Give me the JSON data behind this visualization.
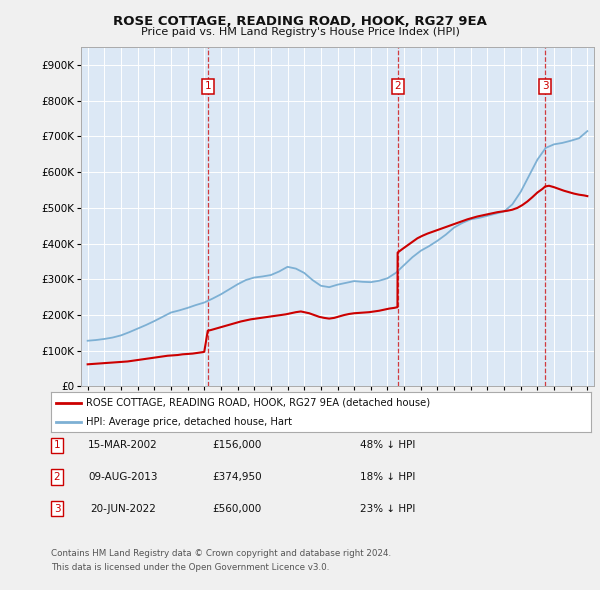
{
  "title": "ROSE COTTAGE, READING ROAD, HOOK, RG27 9EA",
  "subtitle": "Price paid vs. HM Land Registry's House Price Index (HPI)",
  "ylim": [
    0,
    950000
  ],
  "yticks": [
    0,
    100000,
    200000,
    300000,
    400000,
    500000,
    600000,
    700000,
    800000,
    900000
  ],
  "ytick_labels": [
    "£0",
    "£100K",
    "£200K",
    "£300K",
    "£400K",
    "£500K",
    "£600K",
    "£700K",
    "£800K",
    "£900K"
  ],
  "fig_bg": "#f0f0f0",
  "plot_bg": "#dce8f5",
  "red_color": "#cc0000",
  "blue_color": "#7db0d4",
  "grid_color": "#ffffff",
  "sale_year_floats": [
    2002.21,
    2013.61,
    2022.47
  ],
  "sale_labels": [
    "1",
    "2",
    "3"
  ],
  "legend_house": "ROSE COTTAGE, READING ROAD, HOOK, RG27 9EA (detached house)",
  "legend_hpi": "HPI: Average price, detached house, Hart",
  "table_rows": [
    [
      "1",
      "15-MAR-2002",
      "£156,000",
      "48% ↓ HPI"
    ],
    [
      "2",
      "09-AUG-2013",
      "£374,950",
      "18% ↓ HPI"
    ],
    [
      "3",
      "20-JUN-2022",
      "£560,000",
      "23% ↓ HPI"
    ]
  ],
  "footnote1": "Contains HM Land Registry data © Crown copyright and database right 2024.",
  "footnote2": "This data is licensed under the Open Government Licence v3.0.",
  "hpi_x": [
    1995.0,
    1995.5,
    1996.0,
    1996.5,
    1997.0,
    1997.5,
    1998.0,
    1998.5,
    1999.0,
    1999.5,
    2000.0,
    2000.5,
    2001.0,
    2001.5,
    2002.0,
    2002.5,
    2003.0,
    2003.5,
    2004.0,
    2004.5,
    2005.0,
    2005.5,
    2006.0,
    2006.5,
    2007.0,
    2007.5,
    2008.0,
    2008.5,
    2009.0,
    2009.5,
    2010.0,
    2010.5,
    2011.0,
    2011.5,
    2012.0,
    2012.5,
    2013.0,
    2013.5,
    2014.0,
    2014.5,
    2015.0,
    2015.5,
    2016.0,
    2016.5,
    2017.0,
    2017.5,
    2018.0,
    2018.5,
    2019.0,
    2019.5,
    2020.0,
    2020.5,
    2021.0,
    2021.5,
    2022.0,
    2022.5,
    2023.0,
    2023.5,
    2024.0,
    2024.5,
    2025.0
  ],
  "hpi_y": [
    128000,
    130000,
    133000,
    137000,
    143000,
    152000,
    162000,
    172000,
    183000,
    195000,
    207000,
    213000,
    220000,
    228000,
    235000,
    246000,
    258000,
    272000,
    286000,
    298000,
    305000,
    308000,
    312000,
    322000,
    335000,
    330000,
    318000,
    298000,
    282000,
    278000,
    285000,
    290000,
    295000,
    293000,
    292000,
    296000,
    303000,
    318000,
    340000,
    362000,
    380000,
    393000,
    408000,
    425000,
    445000,
    458000,
    468000,
    472000,
    478000,
    484000,
    490000,
    510000,
    545000,
    590000,
    635000,
    668000,
    678000,
    682000,
    688000,
    695000,
    715000
  ],
  "price_x": [
    1995.0,
    1995.3,
    1995.6,
    1995.9,
    1996.2,
    1996.5,
    1996.8,
    1997.1,
    1997.4,
    1997.7,
    1998.0,
    1998.3,
    1998.6,
    1998.9,
    1999.2,
    1999.5,
    1999.8,
    2000.1,
    2000.4,
    2000.7,
    2001.0,
    2001.3,
    2001.6,
    2001.9,
    2002.0,
    2002.21,
    2002.4,
    2002.7,
    2003.0,
    2003.3,
    2003.6,
    2003.9,
    2004.2,
    2004.5,
    2004.8,
    2005.1,
    2005.4,
    2005.7,
    2006.0,
    2006.3,
    2006.6,
    2006.9,
    2007.2,
    2007.5,
    2007.8,
    2008.0,
    2008.3,
    2008.6,
    2008.9,
    2009.2,
    2009.5,
    2009.8,
    2010.1,
    2010.4,
    2010.7,
    2011.0,
    2011.3,
    2011.6,
    2011.9,
    2012.2,
    2012.5,
    2012.8,
    2013.1,
    2013.4,
    2013.6,
    2013.61,
    2013.9,
    2014.2,
    2014.5,
    2014.8,
    2015.1,
    2015.4,
    2015.7,
    2016.0,
    2016.3,
    2016.6,
    2016.9,
    2017.2,
    2017.5,
    2017.8,
    2018.1,
    2018.4,
    2018.7,
    2019.0,
    2019.3,
    2019.6,
    2019.9,
    2020.2,
    2020.5,
    2020.8,
    2021.1,
    2021.4,
    2021.7,
    2022.0,
    2022.3,
    2022.47,
    2022.7,
    2023.0,
    2023.3,
    2023.6,
    2023.9,
    2024.2,
    2024.5,
    2024.8,
    2025.0
  ],
  "price_y": [
    62000,
    63000,
    64000,
    65000,
    66000,
    67000,
    68000,
    69000,
    70000,
    72000,
    74000,
    76000,
    78000,
    80000,
    82000,
    84000,
    86000,
    87000,
    88000,
    90000,
    91000,
    92000,
    94000,
    96000,
    97000,
    156000,
    158000,
    162000,
    166000,
    170000,
    174000,
    178000,
    182000,
    185000,
    188000,
    190000,
    192000,
    194000,
    196000,
    198000,
    200000,
    202000,
    205000,
    208000,
    210000,
    208000,
    205000,
    200000,
    195000,
    192000,
    190000,
    192000,
    196000,
    200000,
    203000,
    205000,
    206000,
    207000,
    208000,
    210000,
    212000,
    215000,
    218000,
    220000,
    222000,
    374950,
    385000,
    395000,
    405000,
    415000,
    422000,
    428000,
    433000,
    438000,
    443000,
    448000,
    453000,
    458000,
    463000,
    468000,
    472000,
    476000,
    479000,
    482000,
    485000,
    488000,
    490000,
    492000,
    495000,
    500000,
    508000,
    518000,
    530000,
    543000,
    553000,
    560000,
    562000,
    558000,
    553000,
    548000,
    544000,
    540000,
    537000,
    535000,
    533000
  ]
}
